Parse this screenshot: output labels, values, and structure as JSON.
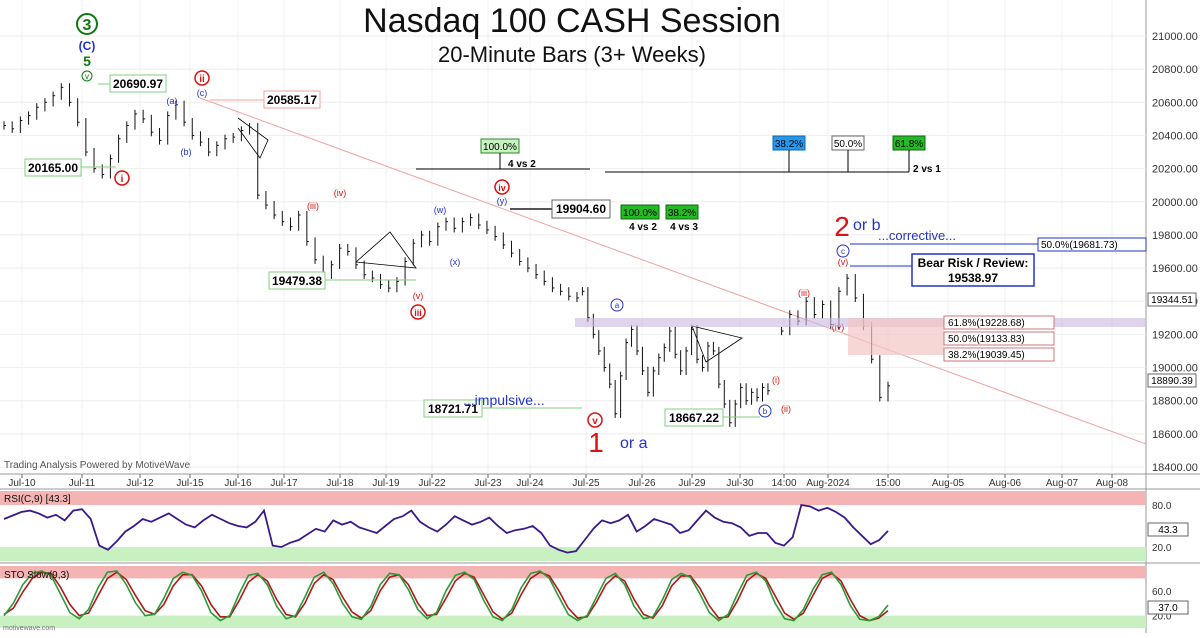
{
  "header": {
    "title": "Nasdaq 100 CASH Session",
    "subtitle": "20-Minute Bars (3+ Weeks)"
  },
  "footer": {
    "powered_by": "Trading Analysis Powered by MotiveWave",
    "brand": "motivewave.com"
  },
  "colors": {
    "price_bars": "#111111",
    "rsi_line": "#3a1a8a",
    "sto_k": "#2a9a3a",
    "sto_d": "#b01818",
    "overbought_band": "#f4b4b4",
    "oversold_band": "#c8f0c0",
    "wave_red": "#dd1111",
    "wave_blue": "#2233cc",
    "wave_green": "#117711",
    "trendline": "#f0a0a0",
    "fib_zone": "#c8b8e0"
  },
  "chart_data": [
    {
      "type": "line",
      "panel": "price",
      "title": "Nasdaq 100 CASH Session",
      "subtitle": "20-Minute Bars (3+ Weeks)",
      "x_ticks": [
        "Jul-10",
        "Jul-11",
        "Jul-12",
        "Jul-15",
        "Jul-16",
        "Jul-17",
        "Jul-18",
        "Jul-19",
        "Jul-22",
        "Jul-23",
        "Jul-24",
        "Jul-25",
        "Jul-26",
        "Jul-29",
        "Jul-30",
        "14:00",
        "Aug-2024",
        "15:00",
        "Aug-05",
        "Aug-06",
        "Aug-07",
        "Aug-08"
      ],
      "y_ticks": [
        18400,
        18600,
        18800,
        19000,
        19200,
        19400,
        19600,
        19800,
        20000,
        20200,
        20400,
        20600,
        20800,
        21000
      ],
      "ylim": [
        18300,
        21150
      ],
      "current_price": "18890.39",
      "crosshair_price": "19344.51",
      "series": [
        {
          "x": [
            0,
            3,
            6,
            9,
            12,
            15,
            18,
            21,
            24,
            27,
            30,
            33,
            36,
            39,
            42,
            45,
            48,
            51,
            54,
            57,
            60,
            63,
            66,
            69,
            72,
            75,
            78,
            81,
            84,
            87,
            90,
            93,
            96,
            99,
            102,
            105,
            108,
            111,
            114,
            117,
            120,
            123,
            126,
            129,
            132,
            135,
            138,
            141,
            144,
            147,
            150,
            153,
            156,
            159,
            162,
            165,
            168,
            171,
            174,
            177,
            180,
            183,
            186,
            189,
            192,
            195,
            198,
            201,
            204,
            207,
            210
          ],
          "values": [
            20460,
            20440,
            20490,
            20520,
            20570,
            20600,
            20640,
            20690,
            20600,
            20480,
            20300,
            20200,
            20165,
            20260,
            20380,
            20460,
            20530,
            20500,
            20420,
            20370,
            20520,
            20585,
            20480,
            20400,
            20360,
            20300,
            20340,
            20380,
            20390,
            20430,
            20450,
            20040,
            19980,
            19920,
            19880,
            19850,
            19920,
            19760,
            19650,
            19560,
            19620,
            19720,
            19700,
            19620,
            19560,
            19540,
            19500,
            19479,
            19520,
            19640,
            19750,
            19800,
            19760,
            19850,
            19880,
            19840,
            19880,
            19904,
            19860,
            19830,
            19790,
            19740,
            19690,
            19640,
            19600,
            19560,
            19520,
            19480,
            19460,
            19430,
            19420
          ]
        },
        {
          "x": [
            212,
            214,
            216,
            218,
            220,
            222,
            224,
            226,
            228,
            230,
            232,
            234,
            236,
            238,
            240,
            242,
            244,
            246,
            248,
            250,
            252,
            254,
            256,
            258,
            260,
            262,
            264,
            266,
            268,
            270,
            272,
            274,
            276,
            278,
            280
          ],
          "values": [
            19460,
            19300,
            19200,
            19100,
            19000,
            18900,
            18721,
            18950,
            19150,
            19230,
            19100,
            18980,
            18850,
            18980,
            19060,
            19120,
            19220,
            19080,
            18980,
            19100,
            19230,
            19050,
            19000,
            19130,
            19100,
            18900,
            18780,
            18667,
            18780,
            18880,
            18800,
            18850,
            18820,
            18880,
            18860
          ]
        },
        {
          "x": [
            285,
            288,
            291,
            294,
            297,
            300,
            303,
            306,
            309,
            312,
            315,
            318,
            321,
            324
          ],
          "values": [
            19220,
            19320,
            19280,
            19400,
            19320,
            19380,
            19260,
            19460,
            19539,
            19420,
            19250,
            19050,
            18820,
            18890
          ]
        }
      ],
      "price_labels": [
        {
          "text": "20690.97",
          "value": 20690.97
        },
        {
          "text": "20585.17",
          "value": 20585.17
        },
        {
          "text": "20165.00",
          "value": 20165.0
        },
        {
          "text": "19904.60",
          "value": 19904.6
        },
        {
          "text": "19479.38",
          "value": 19479.38
        },
        {
          "text": "18721.71",
          "value": 18721.71
        },
        {
          "text": "18667.22",
          "value": 18667.22
        }
      ],
      "annotations": {
        "bear_risk_title": "Bear Risk / Review:",
        "bear_risk_value": "19538.97",
        "corrective": "...corrective...",
        "impulsive": "...impulsive...",
        "fib_50_top": "50.0%(19681.73)",
        "fib_levels": [
          "61.8%(19228.68)",
          "50.0%(19133.83)",
          "38.2%(19039.45)"
        ],
        "pct_100_a": "100.0%",
        "pct_100_b": "100.0%",
        "pct_382_a": "38.2%",
        "pct_382_b": "38.2%",
        "pct_500": "50.0%",
        "pct_618": "61.8%",
        "ratio_4v2_a": "4 vs 2",
        "ratio_4v2_b": "4 vs 2",
        "ratio_4v3": "4 vs 3",
        "ratio_2v1": "2 vs 1"
      },
      "waves": {
        "w3": "3",
        "wC_top": "(C)",
        "w5": "5",
        "wv_small": "v",
        "w_ii": "ii",
        "w_c_blue": "(c)",
        "w_a_blue": "(a)",
        "w_b_blue": "(b)",
        "w_i_big": "i",
        "w_iv_big": "iv",
        "w_iii_big": "iii",
        "w_v_big": "v",
        "w_1": "1",
        "w_1_or": "or a",
        "w_2": "2",
        "w_2_or": "or b",
        "w_a_circ": "a",
        "w_b_circ": "b",
        "w_c_circ": "c",
        "w_w": "(w)",
        "w_x": "(x)",
        "w_y": "(y)",
        "w_iii_paren": "(iii)",
        "w_iv_paren": "(iv)",
        "w_v_paren": "(v)",
        "w_i_paren": "(i)",
        "w_ii_paren": "(ii)",
        "w_iii_small": "(iii)",
        "w_iv_small": "(iv)",
        "w_v_small_r": "(v)"
      }
    },
    {
      "type": "line",
      "panel": "rsi",
      "title": "RSI(C,9) [43.3]",
      "y_ticks": [
        20.0,
        80.0
      ],
      "current_value": "43.3",
      "ylim": [
        0,
        100
      ],
      "values": [
        60,
        65,
        70,
        72,
        68,
        62,
        66,
        58,
        72,
        74,
        60,
        22,
        16,
        28,
        42,
        50,
        60,
        56,
        62,
        68,
        60,
        52,
        48,
        58,
        66,
        60,
        54,
        50,
        48,
        56,
        72,
        22,
        20,
        26,
        30,
        38,
        46,
        42,
        58,
        52,
        56,
        48,
        44,
        40,
        50,
        60,
        64,
        72,
        56,
        48,
        42,
        52,
        64,
        58,
        52,
        56,
        62,
        50,
        40,
        44,
        46,
        50,
        40,
        22,
        16,
        12,
        14,
        30,
        46,
        58,
        54,
        58,
        66,
        42,
        50,
        60,
        56,
        52,
        40,
        44,
        58,
        72,
        62,
        56,
        54,
        48,
        36,
        40,
        40,
        26,
        22,
        34,
        80,
        78,
        72,
        76,
        70,
        62,
        48,
        36,
        24,
        30,
        43
      ]
    },
    {
      "type": "line",
      "panel": "stochastic",
      "title": "STO Slow(9,3)",
      "y_ticks": [
        20.0,
        60.0
      ],
      "current_value": "37.0",
      "ylim": [
        0,
        100
      ],
      "k": [
        20,
        40,
        70,
        88,
        92,
        85,
        55,
        25,
        15,
        30,
        65,
        90,
        92,
        70,
        40,
        20,
        22,
        48,
        80,
        90,
        85,
        60,
        25,
        12,
        20,
        55,
        85,
        88,
        70,
        35,
        15,
        20,
        50,
        82,
        90,
        72,
        40,
        18,
        14,
        35,
        70,
        88,
        86,
        62,
        30,
        15,
        25,
        60,
        85,
        90,
        78,
        45,
        18,
        12,
        30,
        65,
        88,
        92,
        80,
        50,
        22,
        12,
        20,
        50,
        80,
        88,
        70,
        35,
        15,
        18,
        45,
        78,
        88,
        82,
        55,
        25,
        12,
        22,
        55,
        85,
        90,
        76,
        40,
        15,
        12,
        30,
        62,
        86,
        90,
        70,
        36,
        14,
        12,
        18,
        37
      ],
      "d": [
        22,
        32,
        58,
        80,
        90,
        88,
        66,
        38,
        20,
        24,
        52,
        80,
        90,
        78,
        52,
        28,
        22,
        38,
        68,
        86,
        86,
        68,
        38,
        18,
        18,
        44,
        74,
        86,
        76,
        46,
        22,
        18,
        40,
        72,
        86,
        78,
        50,
        26,
        16,
        28,
        60,
        82,
        86,
        70,
        40,
        20,
        22,
        48,
        76,
        88,
        82,
        54,
        26,
        14,
        24,
        54,
        80,
        90,
        84,
        60,
        32,
        16,
        18,
        42,
        70,
        84,
        76,
        46,
        22,
        16,
        36,
        68,
        84,
        84,
        64,
        36,
        16,
        18,
        44,
        76,
        88,
        80,
        52,
        24,
        14,
        24,
        52,
        80,
        88,
        76,
        46,
        20,
        12,
        16,
        28
      ]
    }
  ]
}
